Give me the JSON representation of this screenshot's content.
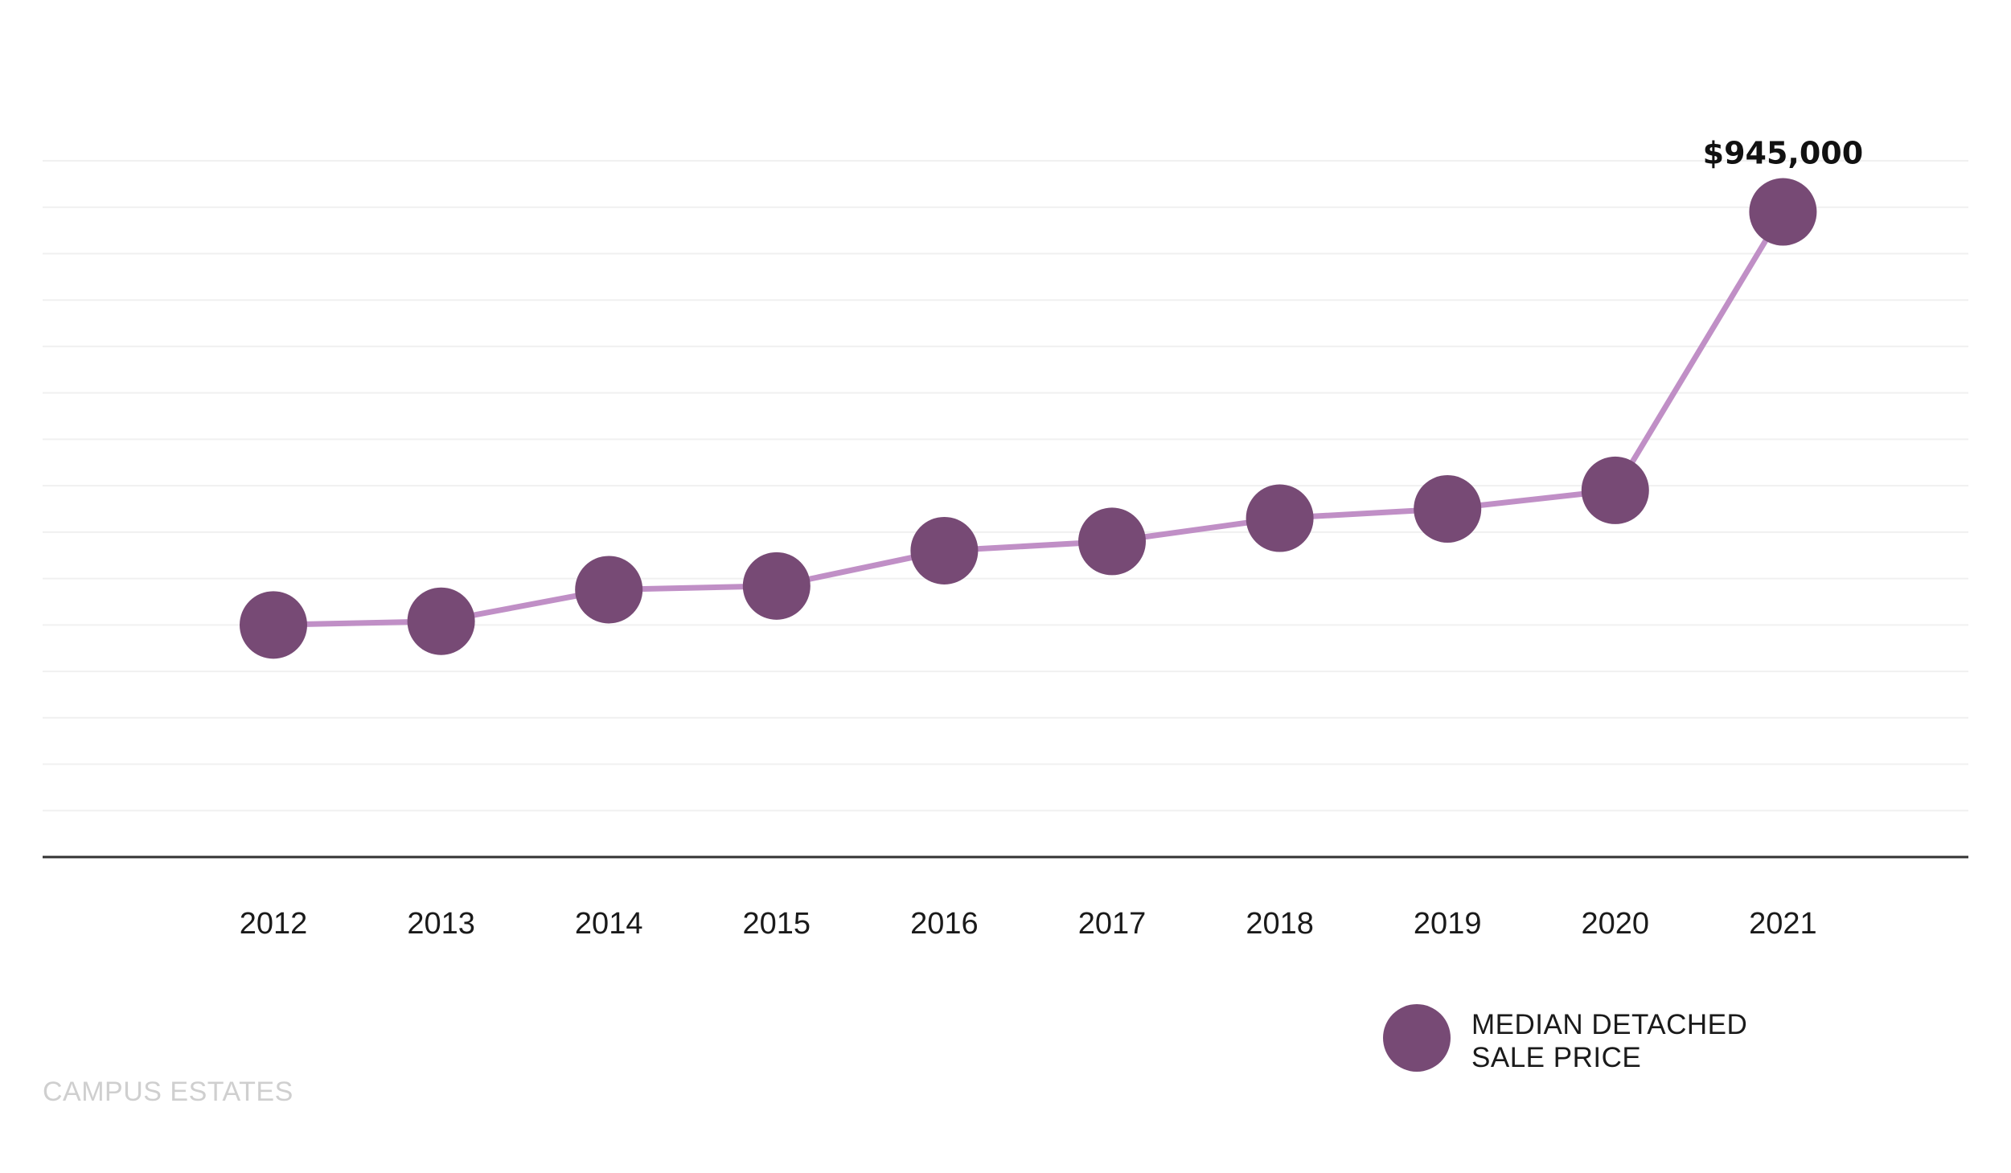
{
  "chart_data": {
    "type": "line",
    "x": [
      "2012",
      "2013",
      "2014",
      "2015",
      "2016",
      "2017",
      "2018",
      "2019",
      "2020",
      "2021"
    ],
    "series": [
      {
        "name": "MEDIAN DETACHED SALE PRICE",
        "values": [
          500000,
          504000,
          538000,
          542000,
          580000,
          590000,
          615000,
          625000,
          645000,
          945000
        ]
      }
    ],
    "annotations": [
      {
        "x": "2021",
        "text": "$945,000"
      }
    ],
    "ylim": [
      250000,
      1000000
    ],
    "grid": true,
    "legend_position": "bottom-right",
    "colors": {
      "marker": "#774A75",
      "line": "#C08FC6",
      "grid": "#F0F0F0",
      "axis": "#333333"
    }
  },
  "legend": {
    "line1": "MEDIAN DETACHED",
    "line2": "SALE PRICE"
  },
  "brand": {
    "text": "CAMPUS ESTATES"
  }
}
